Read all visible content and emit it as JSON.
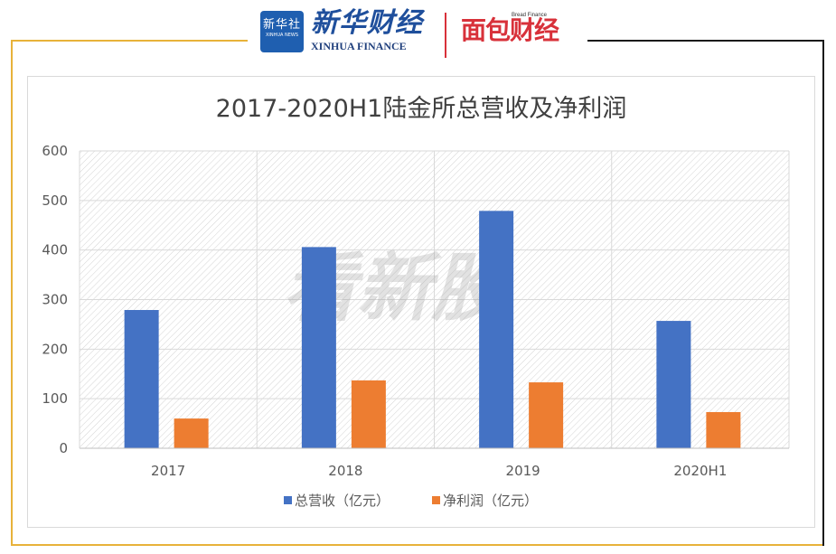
{
  "header": {
    "xinhua_seal_text": "新华社",
    "xinhua_seal_sub": "XINHUA NEWS",
    "xinhua_finance_cn": "新华财经",
    "xinhua_finance_en": "XINHUA FINANCE",
    "bread_finance_small": "Bread Finance",
    "bread_finance_cn": "面包财经"
  },
  "watermark": "看新股",
  "colors": {
    "series_revenue": "#4472C4",
    "series_profit": "#ED7D31",
    "frame_gold": "#E8B23A",
    "frame_dark": "#1a1a1a",
    "grid": "#d9d9d9"
  },
  "chart_data": {
    "type": "bar",
    "title": "2017-2020H1陆金所总营收及净利润",
    "categories": [
      "2017",
      "2018",
      "2019",
      "2020H1"
    ],
    "series": [
      {
        "name": "总营收（亿元）",
        "values": [
          279,
          406,
          479,
          257
        ]
      },
      {
        "name": "净利润（亿元）",
        "values": [
          60,
          137,
          133,
          73
        ]
      }
    ],
    "xlabel": "",
    "ylabel": "",
    "ylim": [
      0,
      600
    ],
    "yticks": [
      0,
      100,
      200,
      300,
      400,
      500,
      600
    ],
    "grid": true,
    "legend_position": "bottom"
  }
}
